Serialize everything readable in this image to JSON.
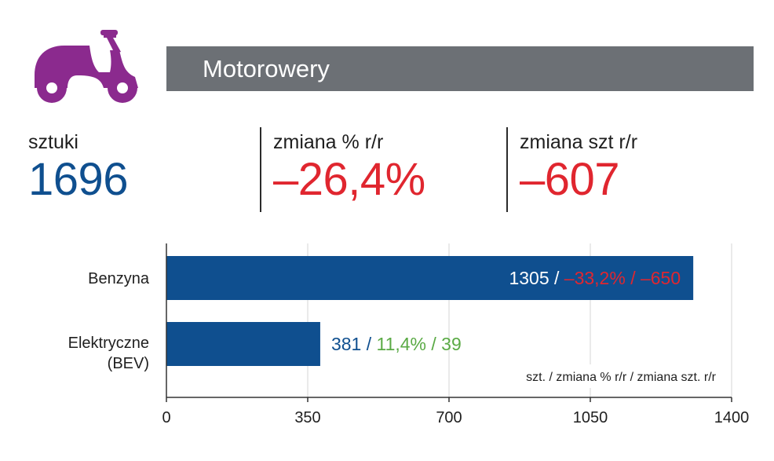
{
  "header": {
    "title": "Motorowery",
    "icon": "scooter-icon",
    "icon_color": "#8b2a8e",
    "band_color": "#6c7075"
  },
  "stats": [
    {
      "label": "sztuki",
      "value": "1696",
      "color": "#0f4f8f"
    },
    {
      "label": "zmiana % r/r",
      "value": "–26,4%",
      "color": "#e0262f"
    },
    {
      "label": "zmiana szt r/r",
      "value": "–607",
      "color": "#e0262f"
    }
  ],
  "chart_data": {
    "type": "bar",
    "orientation": "horizontal",
    "categories": [
      "Benzyna",
      "Elektryczne (BEV)"
    ],
    "values": [
      1305,
      381
    ],
    "xlim": [
      0,
      1400
    ],
    "xticks": [
      0,
      350,
      700,
      1050,
      1400
    ],
    "grid": true,
    "bar_color": "#0f4f8f",
    "data_labels": [
      {
        "value": "1305",
        "sep": " / ",
        "change": "–33,2% / –650",
        "change_color": "#e0262f",
        "value_color": "#ffffff"
      },
      {
        "value": "381",
        "sep": " / ",
        "change": "11,4% / 39",
        "change_color": "#5aaa45",
        "value_color": "#0f4f8f"
      }
    ],
    "legend_note": "szt. / zmiana % r/r / zmiana szt. r/r"
  }
}
